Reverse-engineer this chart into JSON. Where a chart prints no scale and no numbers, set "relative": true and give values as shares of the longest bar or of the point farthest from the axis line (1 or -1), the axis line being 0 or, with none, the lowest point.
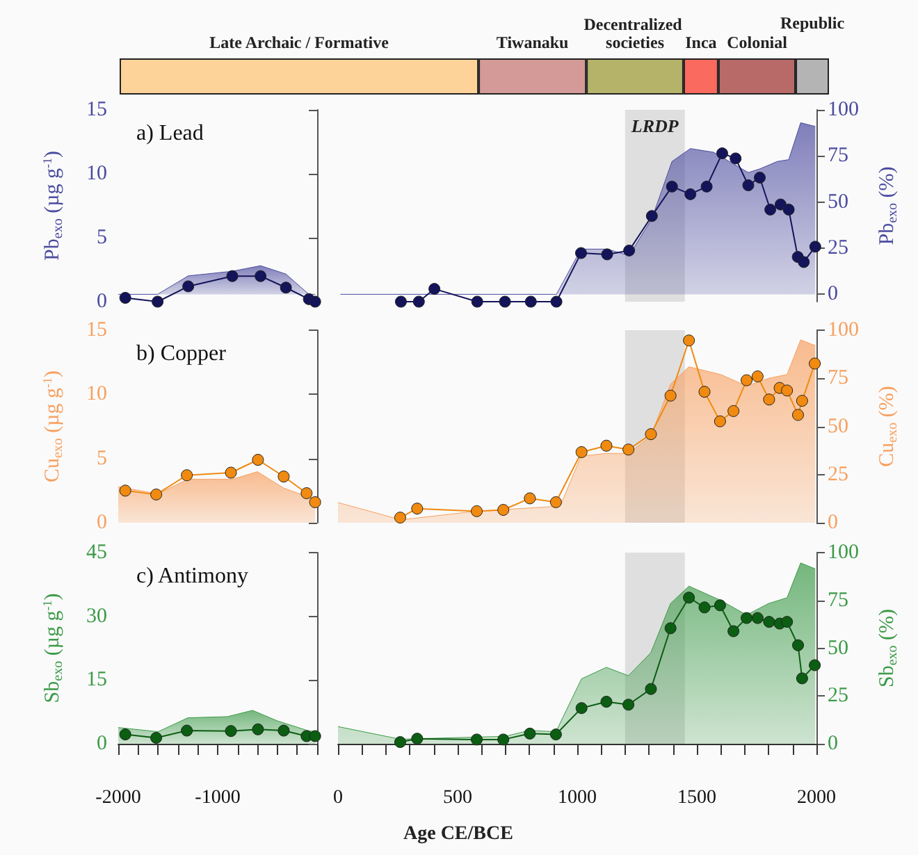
{
  "chart_data": [
    {
      "type": "bar",
      "orientation": "horizontal",
      "stacked": true,
      "relative": true,
      "categories": [
        null
      ],
      "series": [
        {
          "name": "Late Archaic / Formative",
          "color": "#fdd39a",
          "values": [
            0.506
          ]
        },
        {
          "name": "Tiwanaku",
          "color": "#d49a98",
          "values": [
            0.152
          ]
        },
        {
          "name": "Decentralized societies",
          "color": "#b5b36a",
          "values": [
            0.137
          ]
        },
        {
          "name": "Inca",
          "color": "#fb6a5e",
          "values": [
            0.049
          ]
        },
        {
          "name": "Colonial",
          "color": "#b86a68",
          "values": [
            0.109
          ]
        },
        {
          "name": "Republic",
          "color": "#b4b4b4",
          "values": [
            0.047
          ]
        }
      ]
    },
    {
      "type": "line",
      "title": "a) Lead",
      "ylabel": "Pb$_{exo}$ (µg g$^{-1}$)",
      "xlim": [
        -2000,
        0
      ],
      "ylim": [
        0,
        15
      ],
      "yticks": [
        0,
        5,
        10,
        15
      ],
      "y2lim": [
        -4,
        100
      ],
      "tick_labels": "y",
      "series": [
        {
          "type": "area",
          "axis": "y2",
          "color": "#4b4ba0",
          "x": [
            -2000,
            -1604,
            -1296,
            -853,
            -569,
            -314,
            -83,
            -20
          ],
          "values": [
            0,
            0,
            10,
            12.5,
            15.5,
            11,
            0,
            0
          ]
        },
        {
          "type": "line",
          "marker": "circle",
          "color": "#14145a",
          "x": [
            -1929,
            -1604,
            -1296,
            -853,
            -569,
            -314,
            -83,
            -20
          ],
          "values": [
            0.3,
            0,
            1.2,
            2,
            2,
            1.1,
            0.2,
            0
          ]
        }
      ]
    },
    {
      "type": "line",
      "y2label": "Pb$_{exo}$ (%)",
      "xlim": [
        0,
        2000
      ],
      "ylim": [
        0,
        15
      ],
      "y2lim": [
        -4,
        100
      ],
      "y2ticks": [
        0,
        25,
        50,
        75,
        100
      ],
      "tick_labels": "y2",
      "bands": [
        {
          "axis": "x",
          "from": 1200,
          "to": 1450,
          "label": "LRDP",
          "color": "#d9d9d9"
        }
      ],
      "series": [
        {
          "type": "area",
          "axis": "y2",
          "color": "#4b4ba0",
          "x": [
            10,
            263,
            900,
            913,
            1016,
            1125,
            1217,
            1312,
            1396,
            1473,
            1570,
            1715,
            1763,
            1836,
            1884,
            1934,
            1995
          ],
          "values": [
            0,
            0,
            0,
            0,
            24.5,
            24.5,
            21,
            41,
            72,
            79,
            77,
            66,
            68,
            72,
            73,
            93,
            91
          ]
        },
        {
          "type": "line",
          "marker": "circle",
          "color": "#14145a",
          "x": [
            263,
            338,
            403,
            582,
            698,
            806,
            913,
            1016,
            1125,
            1217,
            1312,
            1396,
            1473,
            1541,
            1606,
            1662,
            1715,
            1763,
            1807,
            1850,
            1884,
            1922,
            1947,
            1995
          ],
          "values": [
            0,
            0,
            1,
            0,
            0,
            0,
            0,
            3.8,
            3.7,
            4,
            6.7,
            9,
            8.4,
            9,
            11.6,
            11.2,
            9.1,
            9.7,
            7.2,
            7.6,
            7.2,
            3.5,
            3.1,
            4.3
          ]
        }
      ]
    },
    {
      "type": "line",
      "title": "b) Copper",
      "ylabel": "Cu$_{exo}$ (µg g$^{-1}$)",
      "xlim": [
        -2000,
        0
      ],
      "ylim": [
        0,
        15
      ],
      "yticks": [
        0,
        5,
        10,
        15
      ],
      "y2lim": [
        0,
        100
      ],
      "tick_labels": "y",
      "series": [
        {
          "type": "area",
          "axis": "y2",
          "color": "#f7a060",
          "x": [
            -2000,
            -1604,
            -1300,
            -853,
            -600,
            -336,
            -100,
            -20
          ],
          "values": [
            18.7,
            15,
            22.6,
            22.6,
            26.5,
            18,
            13.6,
            12
          ]
        },
        {
          "type": "line",
          "marker": "circle",
          "color": "#f08a10",
          "x": [
            -1929,
            -1618,
            -1310,
            -867,
            -595,
            -336,
            -106,
            -20
          ],
          "values": [
            2.5,
            2.2,
            3.7,
            3.9,
            4.9,
            3.6,
            2.3,
            1.6
          ]
        }
      ]
    },
    {
      "type": "line",
      "y2label": "Cu$_{exo}$ (%)",
      "xlim": [
        0,
        2000
      ],
      "ylim": [
        0,
        15
      ],
      "y2lim": [
        0,
        100
      ],
      "y2ticks": [
        0,
        25,
        50,
        75,
        100
      ],
      "tick_labels": "y2",
      "bands": [
        {
          "axis": "x",
          "from": 1200,
          "to": 1450,
          "color": "#d9d9d9"
        }
      ],
      "series": [
        {
          "type": "area",
          "axis": "y2",
          "color": "#f7a060",
          "x": [
            0,
            263,
            580,
            900,
            930,
            1016,
            1122,
            1214,
            1308,
            1390,
            1467,
            1600,
            1708,
            1800,
            1877,
            1934,
            1995
          ],
          "values": [
            10.5,
            1.5,
            6,
            8.4,
            9,
            34.6,
            36,
            36,
            45,
            72,
            81,
            77,
            71,
            75,
            77,
            95,
            92
          ]
        },
        {
          "type": "line",
          "marker": "circle",
          "color": "#f08a10",
          "x": [
            260,
            331,
            580,
            691,
            802,
            911,
            1018,
            1122,
            1214,
            1308,
            1390,
            1467,
            1532,
            1597,
            1653,
            1708,
            1754,
            1802,
            1846,
            1877,
            1923,
            1940,
            1993
          ],
          "values": [
            0.4,
            1.1,
            0.9,
            1,
            1.9,
            1.6,
            5.5,
            6,
            5.7,
            6.9,
            9.9,
            14.2,
            10.2,
            7.9,
            8.7,
            11.1,
            11.4,
            9.6,
            10.5,
            10.3,
            8.4,
            9.5,
            12.4
          ]
        }
      ]
    },
    {
      "type": "line",
      "title": "c) Antimony",
      "ylabel": "Sb$_{exo}$ (µg g$^{-1}$)",
      "xlim": [
        -2000,
        0
      ],
      "xticks": [
        -2000,
        {
          "value": -1800,
          "label": null
        },
        {
          "value": -1600,
          "label": null
        },
        {
          "value": -1400,
          "label": null
        },
        {
          "value": -1200,
          "label": null
        },
        -1000,
        {
          "value": -800,
          "label": null
        },
        {
          "value": -600,
          "label": null
        },
        {
          "value": -400,
          "label": null
        },
        {
          "value": -200,
          "label": null
        },
        {
          "value": 0,
          "label": null
        }
      ],
      "ylim": [
        0,
        45
      ],
      "yticks": [
        0,
        15,
        30,
        45
      ],
      "y2lim": [
        0,
        100
      ],
      "tick_labels": "xy",
      "series": [
        {
          "type": "area",
          "axis": "y2",
          "color": "#3c9a48",
          "x": [
            -2000,
            -1600,
            -1300,
            -900,
            -650,
            -400,
            -100,
            -20
          ],
          "values": [
            8.5,
            6.3,
            13.6,
            14.2,
            17.5,
            12,
            7,
            6.3
          ]
        },
        {
          "type": "line",
          "marker": "circle",
          "color": "#0b5e12",
          "x": [
            -1929,
            -1618,
            -1310,
            -867,
            -595,
            -336,
            -106,
            -20
          ],
          "values": [
            2.2,
            1.4,
            3.1,
            3,
            3.4,
            3.1,
            1.8,
            1.8
          ]
        }
      ]
    },
    {
      "type": "line",
      "xlabel": "Age CE/BCE",
      "y2label": "Sb$_{exo}$ (%)",
      "xlim": [
        0,
        2000
      ],
      "xticks": [
        0,
        {
          "value": 100,
          "label": null
        },
        {
          "value": 200,
          "label": null
        },
        {
          "value": 300,
          "label": null
        },
        {
          "value": 400,
          "label": null
        },
        500,
        {
          "value": 600,
          "label": null
        },
        {
          "value": 700,
          "label": null
        },
        {
          "value": 800,
          "label": null
        },
        {
          "value": 900,
          "label": null
        },
        1000,
        {
          "value": 1100,
          "label": null
        },
        {
          "value": 1200,
          "label": null
        },
        {
          "value": 1300,
          "label": null
        },
        {
          "value": 1400,
          "label": null
        },
        1500,
        {
          "value": 1600,
          "label": null
        },
        {
          "value": 1700,
          "label": null
        },
        {
          "value": 1800,
          "label": null
        },
        {
          "value": 1900,
          "label": null
        },
        2000
      ],
      "ylim": [
        0,
        45
      ],
      "y2lim": [
        0,
        100
      ],
      "y2ticks": [
        0,
        25,
        50,
        75,
        100
      ],
      "tick_labels": "xy2",
      "bands": [
        {
          "axis": "x",
          "from": 1200,
          "to": 1450,
          "color": "#d9d9d9"
        }
      ],
      "series": [
        {
          "type": "area",
          "axis": "y2",
          "color": "#3c9a48",
          "x": [
            0,
            260,
            700,
            800,
            911,
            1018,
            1122,
            1214,
            1308,
            1390,
            1467,
            1600,
            1708,
            1800,
            1877,
            1934,
            1995
          ],
          "values": [
            9,
            2.4,
            3.9,
            7,
            6.3,
            34,
            40,
            35.6,
            47.7,
            73.4,
            82.5,
            75,
            67.4,
            73.4,
            76.4,
            94.6,
            91.5
          ]
        },
        {
          "type": "line",
          "marker": "circle",
          "color": "#0b5e12",
          "x": [
            260,
            331,
            580,
            691,
            802,
            911,
            1018,
            1122,
            1214,
            1308,
            1390,
            1467,
            1532,
            1597,
            1653,
            1708,
            1754,
            1802,
            1846,
            1877,
            1923,
            1940,
            1993
          ],
          "values": [
            0.4,
            1.2,
            1,
            1,
            2.4,
            2.2,
            8.4,
            9.9,
            9.2,
            12.9,
            27.2,
            34.4,
            32.1,
            32.6,
            26.5,
            29.6,
            29.6,
            28.7,
            28.3,
            28.7,
            23.2,
            15.4,
            18.5
          ]
        }
      ]
    }
  ]
}
